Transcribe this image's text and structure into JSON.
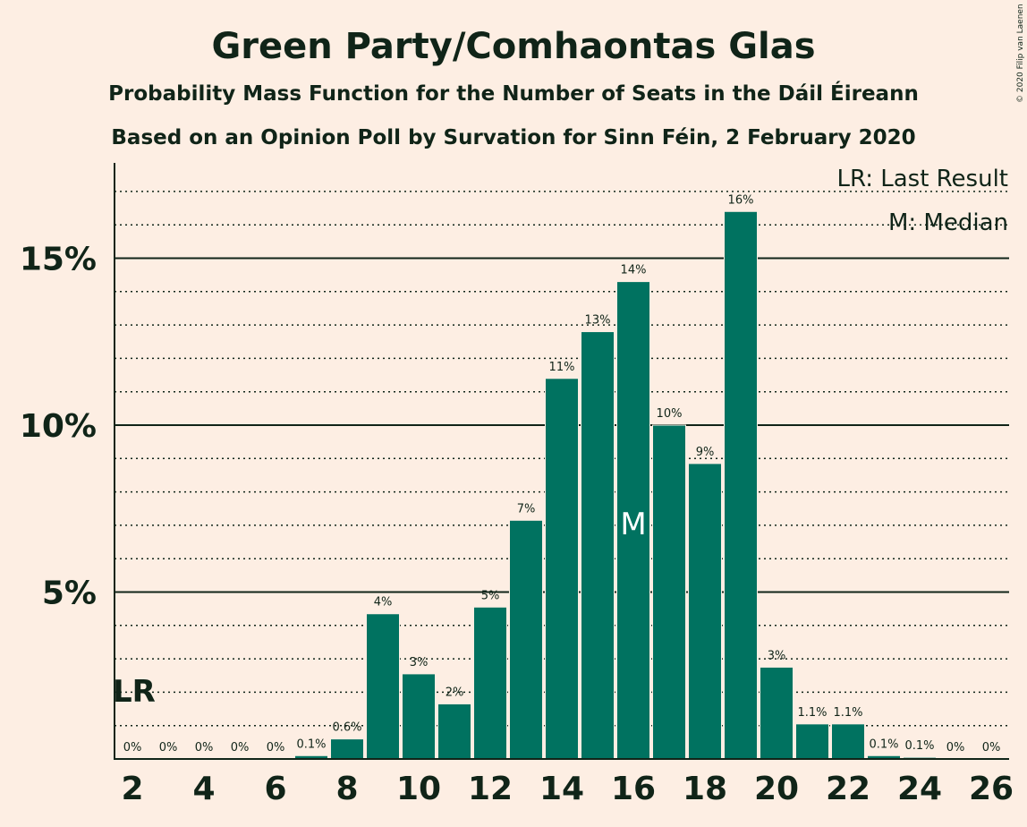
{
  "chart_data": {
    "type": "bar",
    "title": "Green Party/Comhaontas Glas",
    "subtitle": "Probability Mass Function for the Number of Seats in the Dáil Éireann",
    "subtitle2": "Based on an Opinion Poll by Survation for Sinn Féin, 2 February 2020",
    "copyright": "© 2020 Filip van Laenen",
    "legend": [
      "LR: Last Result",
      "M: Median"
    ],
    "legend_position": "top-right",
    "x": [
      2,
      3,
      4,
      5,
      6,
      7,
      8,
      9,
      10,
      11,
      12,
      13,
      14,
      15,
      16,
      17,
      18,
      19,
      20,
      21,
      22,
      23,
      24,
      25,
      26
    ],
    "values": [
      0,
      0,
      0,
      0,
      0,
      0.1,
      0.6,
      4.35,
      2.55,
      1.65,
      4.55,
      7.15,
      11.4,
      12.8,
      14.3,
      10.0,
      8.85,
      16.4,
      2.75,
      1.05,
      1.05,
      0.1,
      0.05,
      0,
      0
    ],
    "labels": [
      "0%",
      "0%",
      "0%",
      "0%",
      "0%",
      "0.1%",
      "0.6%",
      "4%",
      "3%",
      "2%",
      "5%",
      "7%",
      "11%",
      "13%",
      "14%",
      "10%",
      "9%",
      "16%",
      "3%",
      "1.1%",
      "1.1%",
      "0.1%",
      "0.1%",
      "0%",
      "0%"
    ],
    "x_ticks": [
      2,
      4,
      6,
      8,
      10,
      12,
      14,
      16,
      18,
      20,
      22,
      24,
      26
    ],
    "y_ticks": [
      5,
      10,
      15
    ],
    "y_tick_labels": [
      "5%",
      "10%",
      "15%"
    ],
    "ylim": [
      0,
      17.5
    ],
    "last_result_seat": 2,
    "last_result_label": "LR",
    "median_seat": 16,
    "median_label": "M",
    "bar_color": "#007260",
    "background_color": "#FDEEE3",
    "grid": true
  }
}
